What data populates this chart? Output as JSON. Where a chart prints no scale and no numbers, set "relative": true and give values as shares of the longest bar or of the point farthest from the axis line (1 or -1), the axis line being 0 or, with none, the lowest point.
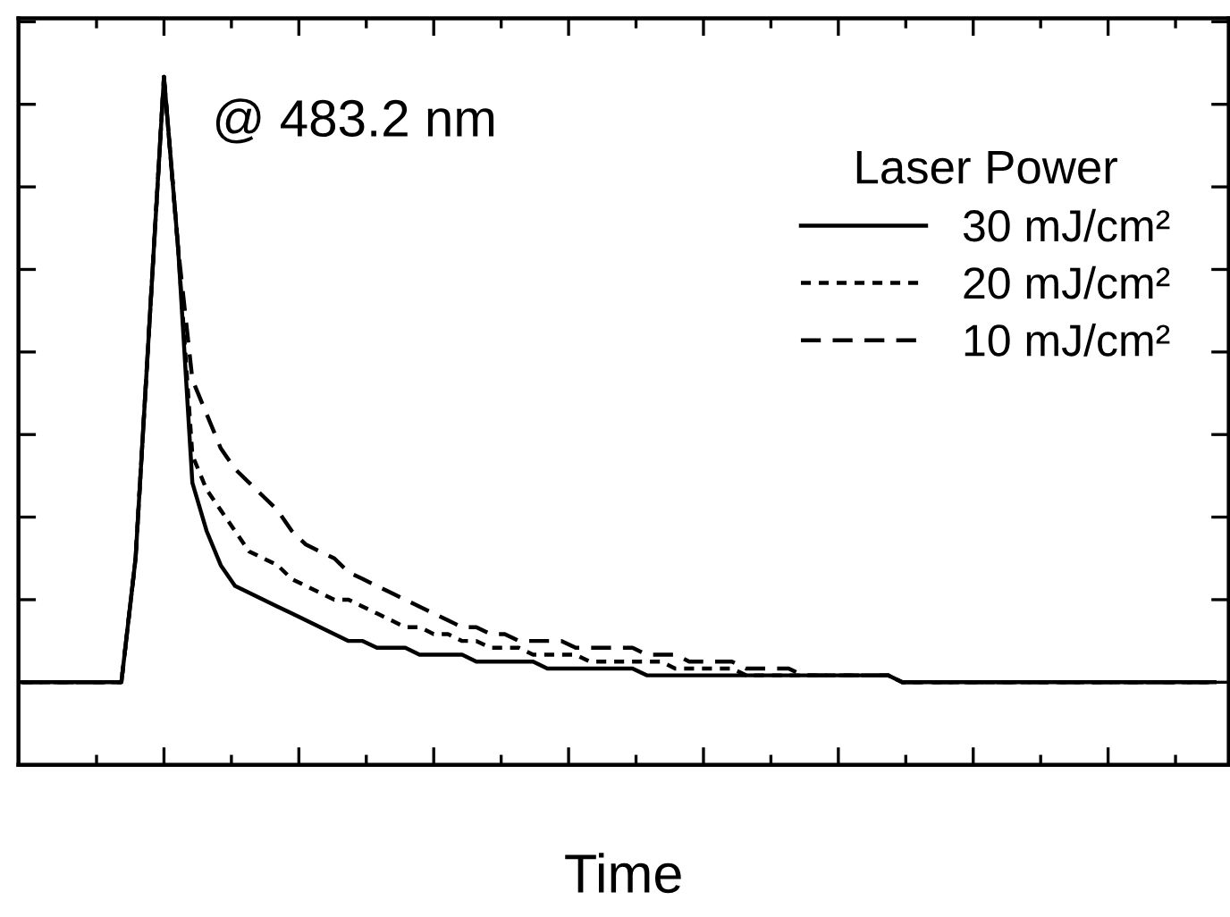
{
  "chart_data": {
    "type": "line",
    "relative": true,
    "xlabel": "Time",
    "legend_title": "Laser Power",
    "legend": "right",
    "grid": false,
    "marker": "none",
    "annotations": [
      "@ 483.2 nm"
    ],
    "categories": [
      null,
      null,
      null,
      null,
      null,
      null,
      null,
      null,
      null,
      null,
      null,
      null,
      null,
      null,
      null,
      null,
      null,
      null,
      null,
      null,
      null,
      null,
      null,
      null,
      null,
      null,
      null,
      null,
      null,
      null,
      null,
      null,
      null,
      null,
      null,
      null,
      null,
      null,
      null,
      null,
      null,
      null,
      null,
      null,
      null,
      null,
      null,
      null,
      null,
      null,
      null,
      null,
      null,
      null,
      null,
      null,
      null,
      null,
      null,
      null,
      null,
      null,
      null,
      null,
      null,
      null,
      null,
      null,
      null,
      null,
      null,
      null,
      null,
      null,
      null,
      null,
      null,
      null,
      null,
      null,
      null,
      null,
      null,
      null,
      null
    ],
    "series": [
      {
        "name": "30 mJ/cm²",
        "color": "#000000",
        "line_style": "solid",
        "values": [
          0.12,
          0.12,
          0.12,
          0.12,
          0.12,
          0.12,
          0.12,
          0.12,
          0.3,
          0.65,
          1.0,
          0.75,
          0.41,
          0.34,
          0.29,
          0.26,
          0.25,
          0.24,
          0.23,
          0.22,
          0.21,
          0.2,
          0.19,
          0.18,
          0.18,
          0.17,
          0.17,
          0.17,
          0.16,
          0.16,
          0.16,
          0.16,
          0.15,
          0.15,
          0.15,
          0.15,
          0.15,
          0.14,
          0.14,
          0.14,
          0.14,
          0.14,
          0.14,
          0.14,
          0.13,
          0.13,
          0.13,
          0.13,
          0.13,
          0.13,
          0.13,
          0.13,
          0.13,
          0.13,
          0.13,
          0.13,
          0.13,
          0.13,
          0.13,
          0.13,
          0.13,
          0.13,
          0.12,
          0.12,
          0.12,
          0.12,
          0.12,
          0.12,
          0.12,
          0.12,
          0.12,
          0.12,
          0.12,
          0.12,
          0.12,
          0.12,
          0.12,
          0.12,
          0.12,
          0.12,
          0.12,
          0.12,
          0.12,
          0.12,
          0.12
        ]
      },
      {
        "name": "20 mJ/cm²",
        "color": "#000000",
        "line_style": "dotted",
        "values": [
          0.12,
          0.12,
          0.12,
          0.12,
          0.12,
          0.12,
          0.12,
          0.12,
          0.3,
          0.65,
          1.0,
          0.75,
          0.45,
          0.4,
          0.37,
          0.34,
          0.31,
          0.3,
          0.29,
          0.27,
          0.26,
          0.25,
          0.24,
          0.24,
          0.23,
          0.22,
          0.21,
          0.2,
          0.2,
          0.19,
          0.19,
          0.18,
          0.18,
          0.17,
          0.17,
          0.17,
          0.16,
          0.16,
          0.16,
          0.16,
          0.15,
          0.15,
          0.15,
          0.15,
          0.15,
          0.15,
          0.14,
          0.14,
          0.14,
          0.14,
          0.14,
          0.13,
          0.13,
          0.13,
          0.13,
          0.13,
          0.13,
          0.13,
          0.13,
          0.13,
          0.13,
          0.13,
          0.12,
          0.12,
          0.12,
          0.12,
          0.12,
          0.12,
          0.12,
          0.12,
          0.12,
          0.12,
          0.12,
          0.12,
          0.12,
          0.12,
          0.12,
          0.12,
          0.12,
          0.12,
          0.12,
          0.12,
          0.12,
          0.12,
          0.12
        ]
      },
      {
        "name": "10 mJ/cm²",
        "color": "#000000",
        "line_style": "dashed",
        "values": [
          0.12,
          0.12,
          0.12,
          0.12,
          0.12,
          0.12,
          0.12,
          0.12,
          0.3,
          0.65,
          1.0,
          0.75,
          0.56,
          0.51,
          0.46,
          0.43,
          0.41,
          0.39,
          0.37,
          0.34,
          0.32,
          0.31,
          0.3,
          0.28,
          0.27,
          0.26,
          0.25,
          0.24,
          0.23,
          0.22,
          0.21,
          0.2,
          0.2,
          0.19,
          0.19,
          0.18,
          0.18,
          0.18,
          0.18,
          0.17,
          0.17,
          0.17,
          0.17,
          0.17,
          0.16,
          0.16,
          0.16,
          0.15,
          0.15,
          0.15,
          0.15,
          0.14,
          0.14,
          0.14,
          0.14,
          0.13,
          0.13,
          0.13,
          0.13,
          0.13,
          0.13,
          0.13,
          0.12,
          0.12,
          0.12,
          0.12,
          0.12,
          0.12,
          0.12,
          0.12,
          0.12,
          0.12,
          0.12,
          0.12,
          0.12,
          0.12,
          0.12,
          0.12,
          0.12,
          0.12,
          0.12,
          0.12,
          0.12,
          0.12,
          0.12
        ]
      }
    ]
  }
}
